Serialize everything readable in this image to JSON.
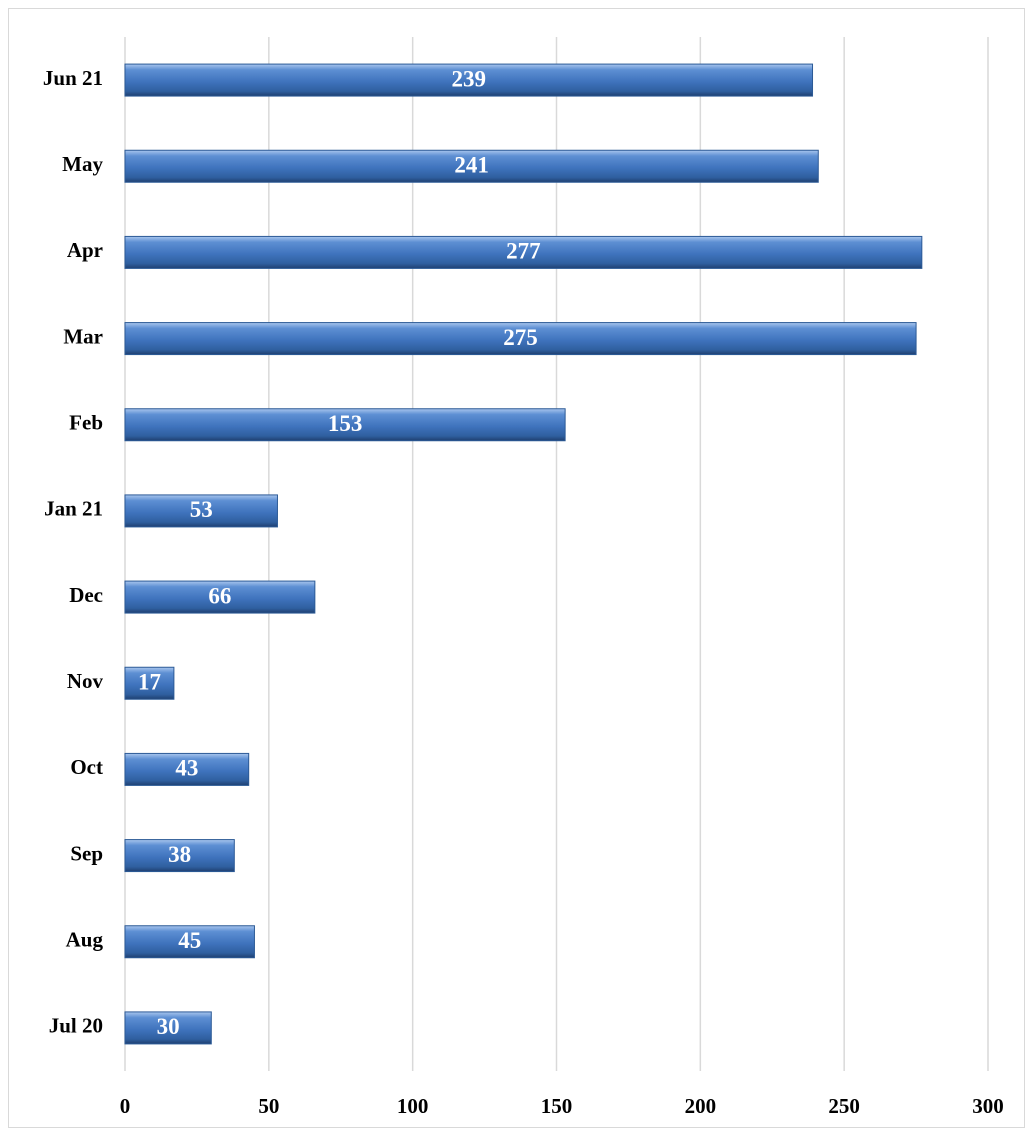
{
  "chart_data": {
    "type": "hbar",
    "categories": [
      "Jun 21",
      "May",
      "Apr",
      "Mar",
      "Feb",
      "Jan 21",
      "Dec",
      "Nov",
      "Oct",
      "Sep",
      "Aug",
      "Jul 20"
    ],
    "values": [
      239,
      241,
      277,
      275,
      153,
      53,
      66,
      17,
      43,
      38,
      45,
      30
    ],
    "color": "#4a7ebb",
    "xlim": [
      0,
      300
    ],
    "xticks": [
      0,
      50,
      100,
      150,
      200,
      250,
      300
    ],
    "grid": true
  }
}
